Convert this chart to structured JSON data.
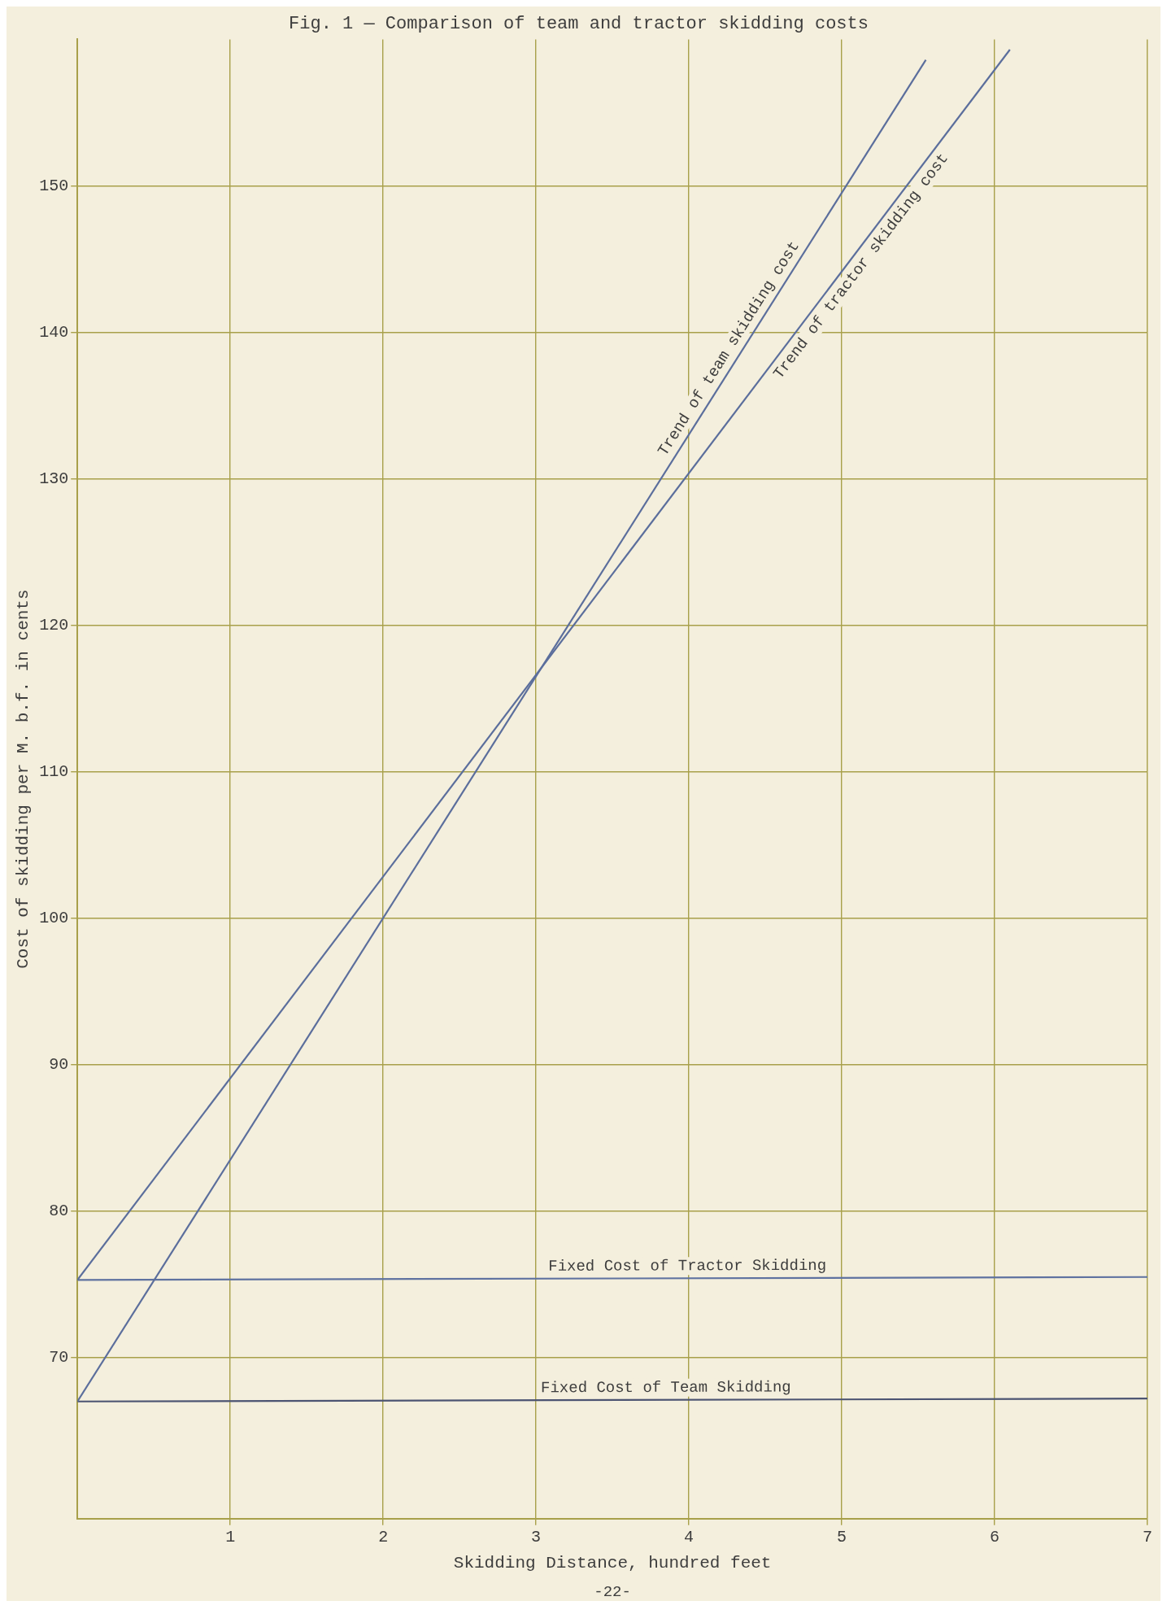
{
  "chart_data": {
    "type": "line",
    "title": "Fig. 1 — Comparison of team and tractor skidding costs",
    "xlabel": "Skidding Distance, hundred feet",
    "ylabel": "Cost of skidding per M. b.f. in cents",
    "xlim": [
      0,
      7
    ],
    "xticks": [
      1,
      2,
      3,
      4,
      5,
      6,
      7
    ],
    "ylim": [
      59,
      160
    ],
    "yticks": [
      70,
      80,
      90,
      100,
      110,
      120,
      130,
      140,
      150
    ],
    "grid": true,
    "legend": false,
    "marker": "none",
    "line_style": "solid",
    "series": [
      {
        "name": "Trend of team skidding cost",
        "color": "#5b6e9c",
        "x": [
          0,
          5.55
        ],
        "values": [
          67,
          158.6
        ]
      },
      {
        "name": "Trend of tractor skidding cost",
        "color": "#5b6e9c",
        "x": [
          0,
          6.1
        ],
        "values": [
          75.3,
          159.3
        ]
      },
      {
        "name": "Fixed Cost of Tractor Skidding",
        "color": "#5f72a0",
        "x": [
          0,
          7
        ],
        "values": [
          75.3,
          75.5
        ]
      },
      {
        "name": "Fixed Cost of Team Skidding",
        "color": "#4c5472",
        "x": [
          0,
          7
        ],
        "values": [
          67,
          67.2
        ]
      }
    ],
    "annotations": [
      "-22-"
    ]
  }
}
